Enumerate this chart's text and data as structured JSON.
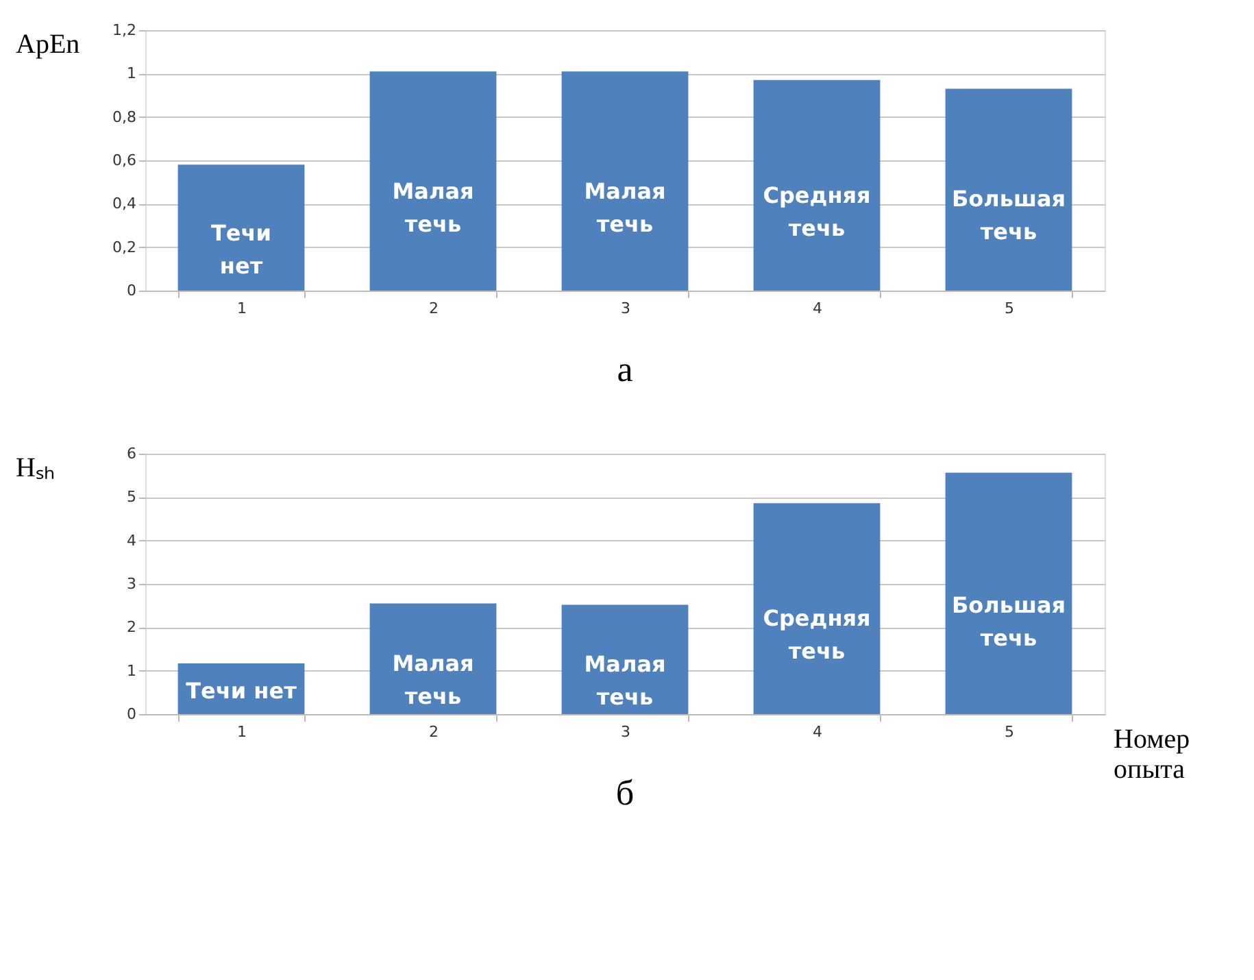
{
  "chart_data": [
    {
      "type": "bar",
      "ylabel": "ApEn",
      "categories": [
        "1",
        "2",
        "3",
        "4",
        "5"
      ],
      "values": [
        0.58,
        1.01,
        1.01,
        0.97,
        0.93
      ],
      "color": "#4f81bd",
      "ylim": [
        0,
        1.2
      ],
      "yticks": [
        0,
        {
          "value": 0.2,
          "label": "0,2"
        },
        {
          "value": 0.4,
          "label": "0,4"
        },
        {
          "value": 0.6,
          "label": "0,6"
        },
        {
          "value": 0.8,
          "label": "0,8"
        },
        1,
        {
          "value": 1.2,
          "label": "1,2"
        }
      ],
      "grid": "y",
      "annotations": [
        "Течи\nнет",
        "Малая\nтечь",
        "Малая\nтечь",
        "Средняя\nтечь",
        "Большая\nтечь",
        "а"
      ]
    },
    {
      "type": "bar",
      "ylabel": "Hₛₕ",
      "xlabel": "Номер опыта",
      "categories": [
        "1",
        "2",
        "3",
        "4",
        "5"
      ],
      "values": [
        1.17,
        2.55,
        2.52,
        4.86,
        5.56
      ],
      "color": "#4f81bd",
      "ylim": [
        0,
        6
      ],
      "yticks": [
        0,
        1,
        2,
        3,
        4,
        5,
        6
      ],
      "grid": "y",
      "annotations": [
        "Течи нет",
        "Малая\nтечь",
        "Малая\nтечь",
        "Средняя\nтечь",
        "Большая\nтечь",
        "б"
      ]
    }
  ]
}
